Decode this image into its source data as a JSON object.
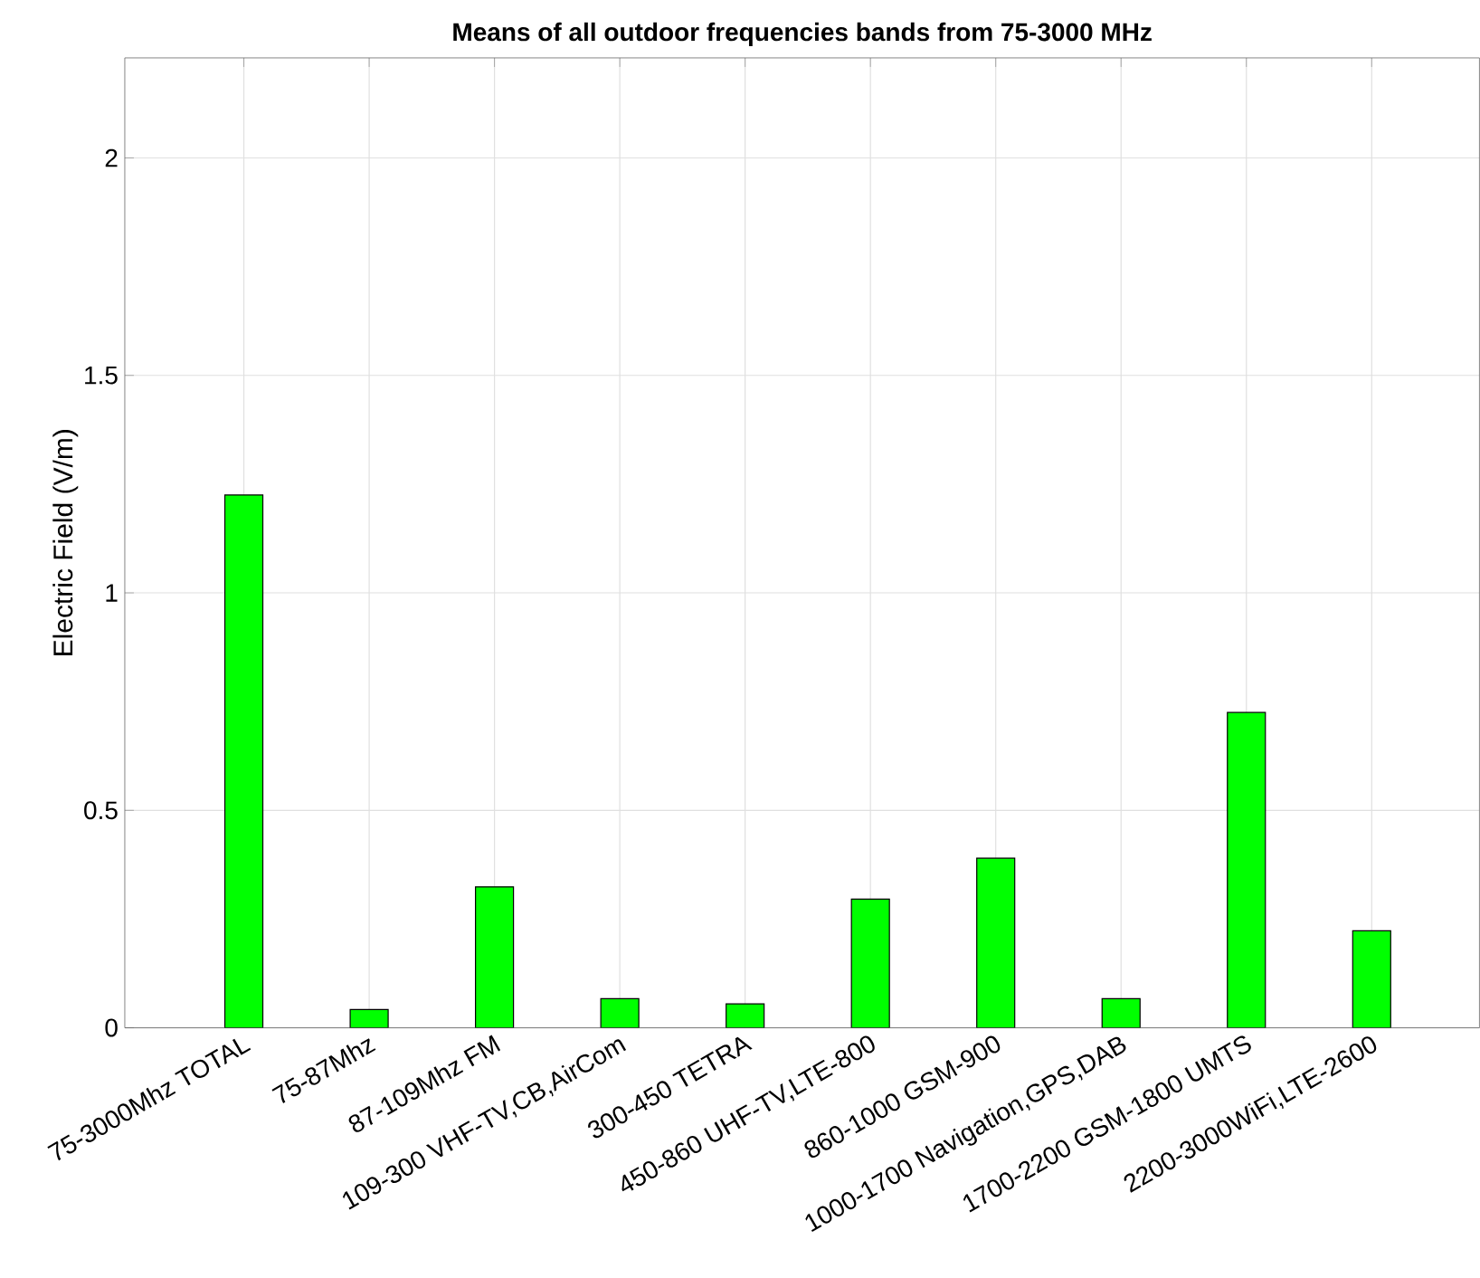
{
  "chart_data": {
    "type": "bar",
    "title": "Means of all outdoor frequencies bands from 75-3000 MHz",
    "ylabel": "Electric Field (V/m)",
    "categories": [
      "75-3000Mhz TOTAL",
      "75-87Mhz",
      "87-109Mhz FM",
      "109-300 VHF-TV,CB,AirCom",
      "300-450 TETRA",
      "450-860 UHF-TV,LTE-800",
      "860-1000 GSM-900",
      "1000-1700 Navigation,GPS,DAB",
      "1700-2200 GSM-1800 UMTS",
      "2200-3000WiFi,LTE-2600"
    ],
    "values": [
      1.225,
      0.042,
      0.324,
      0.067,
      0.055,
      0.296,
      0.39,
      0.067,
      0.725,
      0.223
    ],
    "color": "#00ff00",
    "ylim": [
      0,
      2.23
    ],
    "yticks": [
      0,
      0.5,
      1,
      1.5,
      2
    ],
    "grid": true
  }
}
